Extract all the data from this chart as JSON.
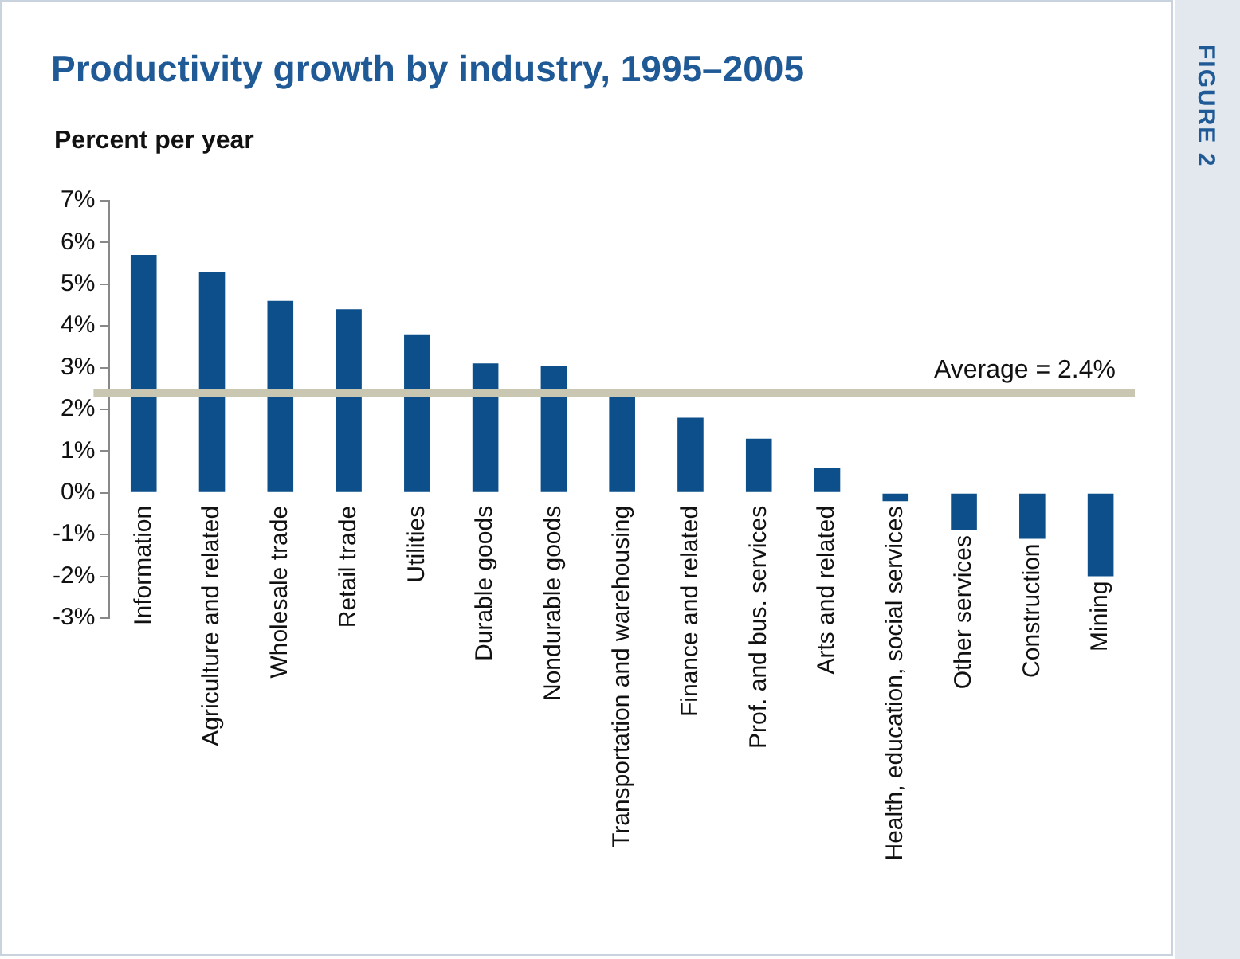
{
  "chart_data": {
    "type": "bar",
    "title": "Productivity growth by industry, 1995–2005",
    "ylabel": "Percent per year",
    "annotations": [
      "FIGURE 2"
    ],
    "categories": [
      "Information",
      "Agriculture and related",
      "Wholesale trade",
      "Retail trade",
      "Utilities",
      "Durable goods",
      "Nondurable goods",
      "Transportation and warehousing",
      "Finance and related",
      "Prof. and bus. services",
      "Arts and related",
      "Health, education, social services",
      "Other services",
      "Construction",
      "Mining"
    ],
    "values": [
      5.7,
      5.3,
      4.6,
      4.4,
      3.8,
      3.1,
      3.05,
      2.35,
      1.8,
      1.3,
      0.6,
      -0.2,
      -0.9,
      -1.1,
      -2.0
    ],
    "color": "#0d4f8b",
    "ylim": [
      -3,
      7
    ],
    "yticks": [
      {
        "value": 7,
        "label": "7%"
      },
      {
        "value": 6,
        "label": "6%"
      },
      {
        "value": 5,
        "label": "5%"
      },
      {
        "value": 4,
        "label": "4%"
      },
      {
        "value": 3,
        "label": "3%"
      },
      {
        "value": 2,
        "label": "2%"
      },
      {
        "value": 1,
        "label": "1%"
      },
      {
        "value": 0,
        "label": "0%"
      },
      {
        "value": -1,
        "label": "-1%"
      },
      {
        "value": -2,
        "label": "-2%"
      },
      {
        "value": -3,
        "label": "-3%"
      }
    ],
    "ref_lines": [
      {
        "axis": "y",
        "value": 2.4,
        "label": "Average = 2.4%",
        "color": "#c9c7b1"
      }
    ],
    "grid": false,
    "legend": false
  }
}
